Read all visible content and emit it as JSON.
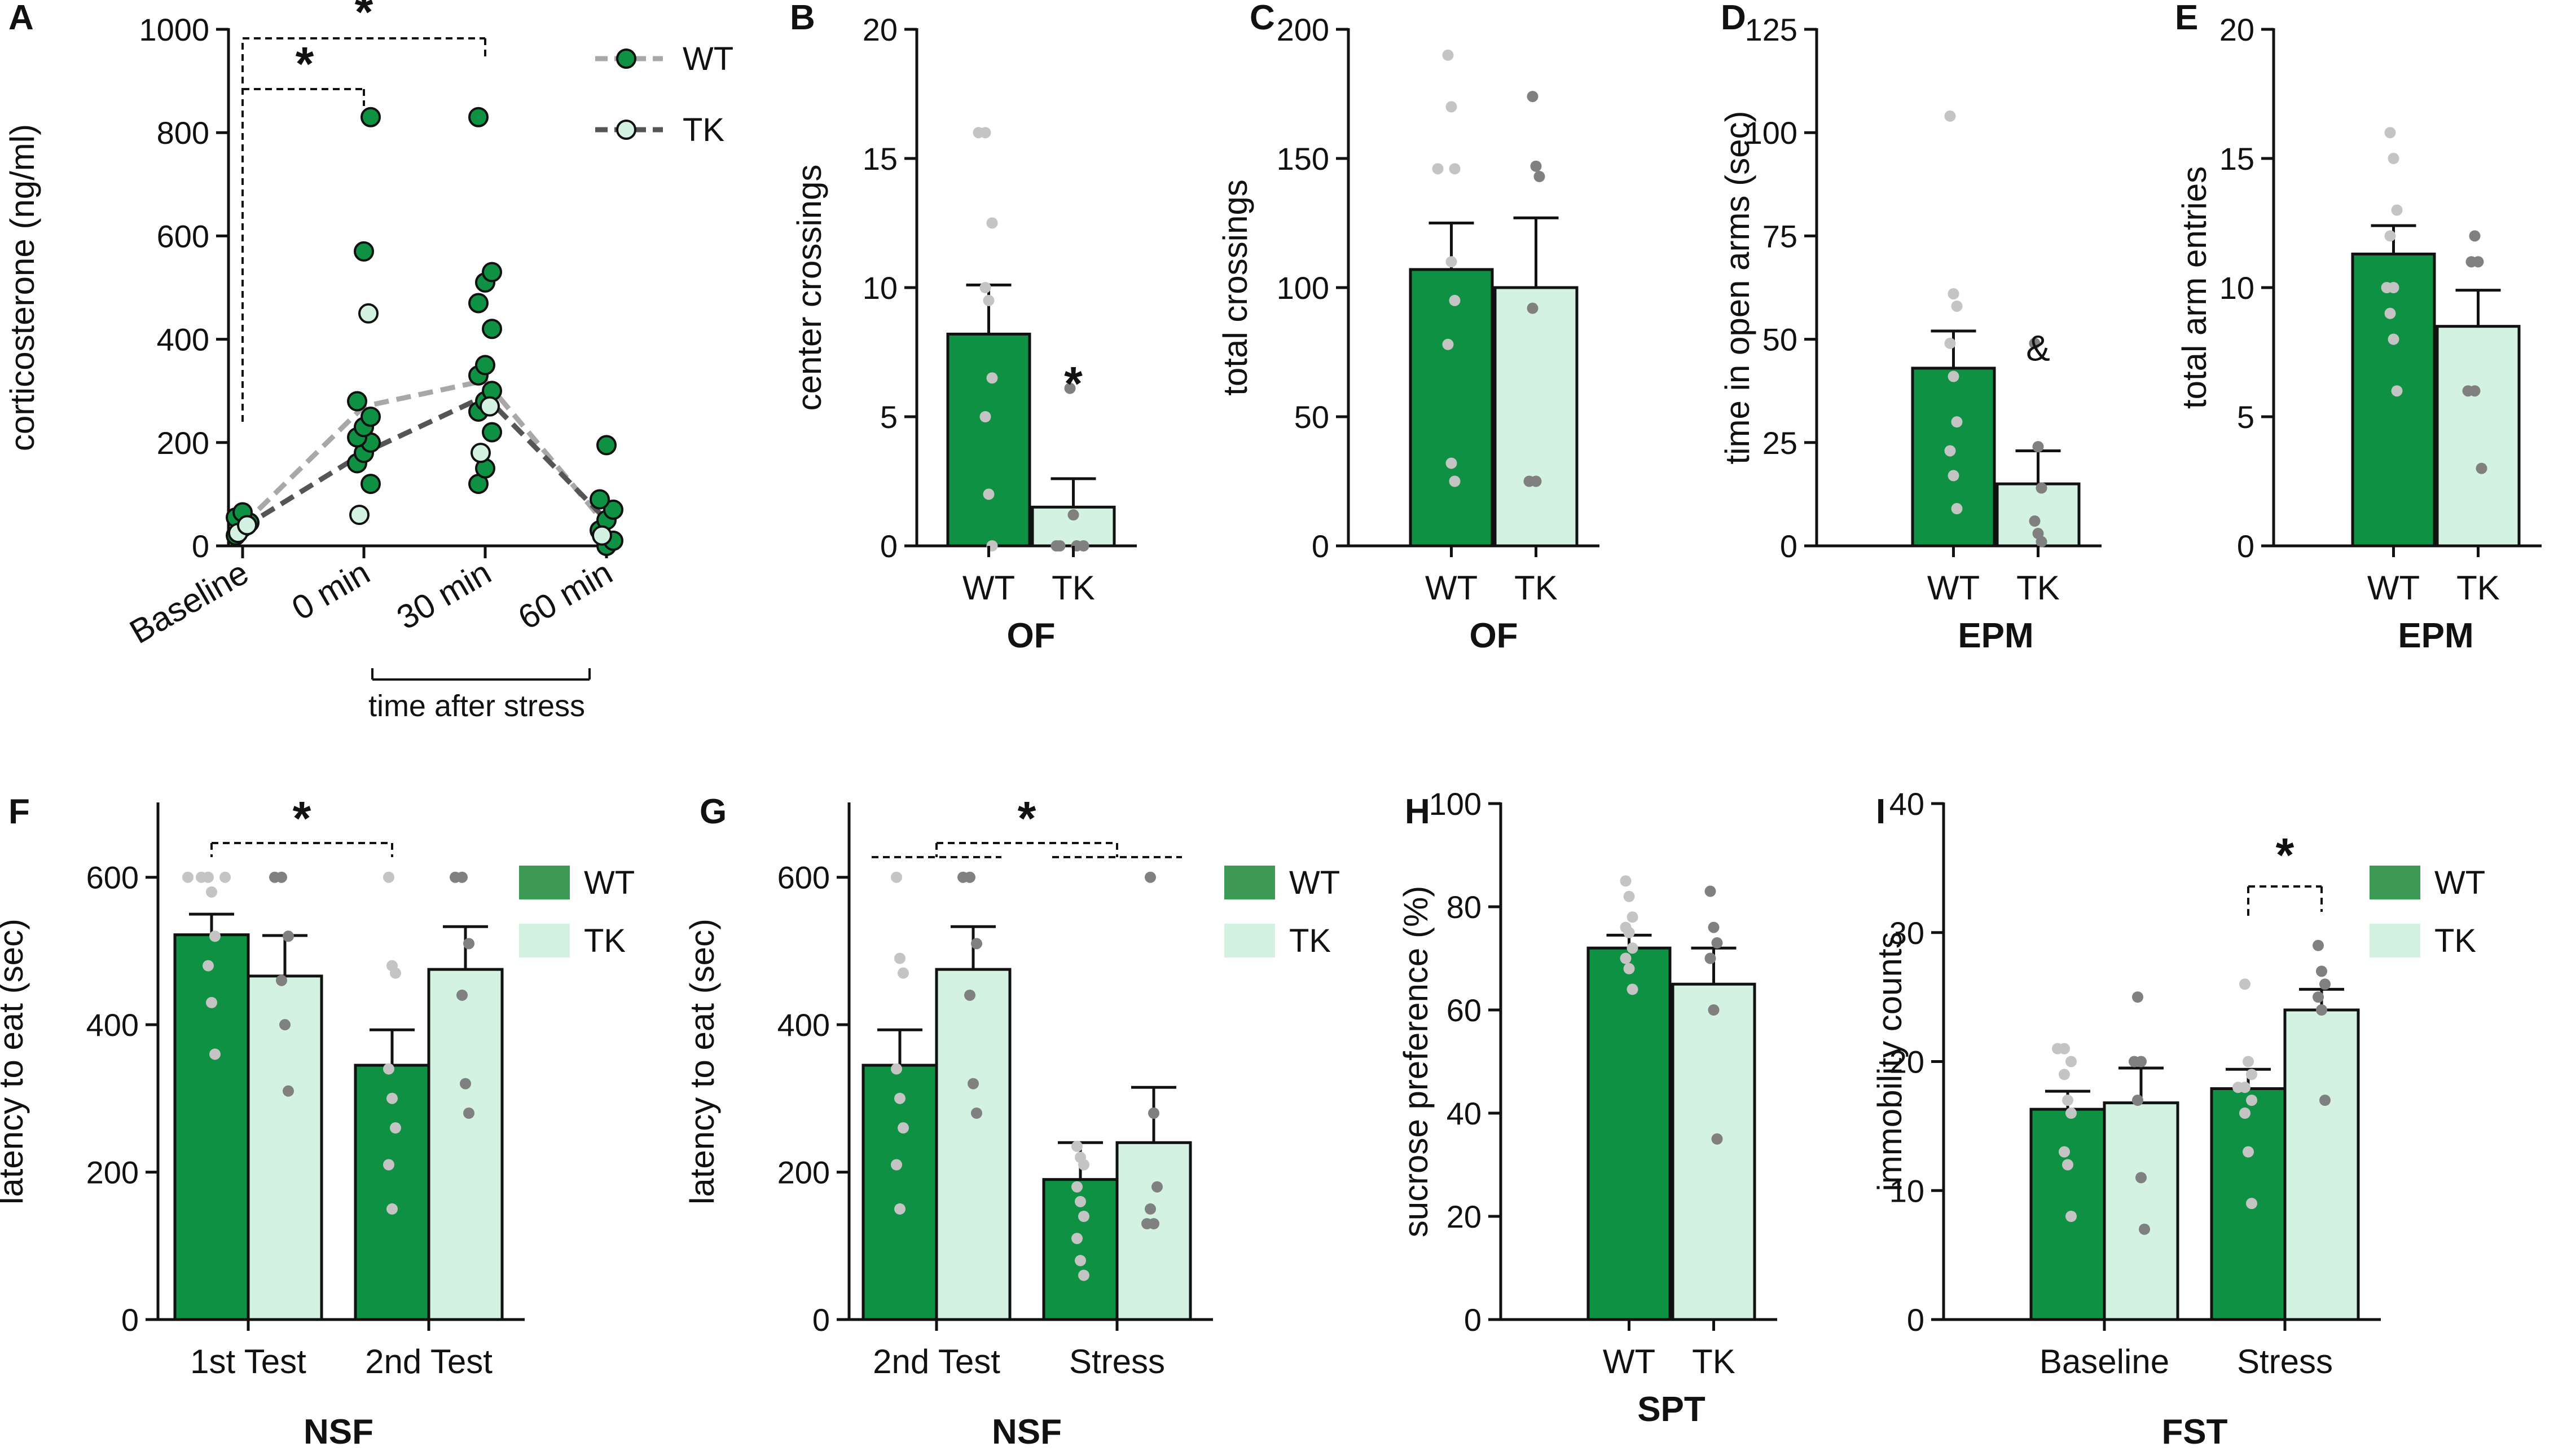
{
  "colors": {
    "wt": "#0e9142",
    "wt_legend": "#3c9a54",
    "tk": "#d4f2e1",
    "axis": "#111111",
    "dot_wt": "#c4c4c4",
    "dot_tk": "#808080",
    "line_wt": "#a8a8a8",
    "line_tk": "#555555"
  },
  "legend": {
    "wt": "WT",
    "tk": "TK"
  },
  "chart_data": [
    {
      "id": "A",
      "type": "line",
      "panel_label": "A",
      "ylabel": "corticosterone (ng/ml)",
      "ylim": [
        0,
        1000
      ],
      "yticks": [
        "0",
        "200",
        "400",
        "600",
        "800",
        "1000"
      ],
      "categories": [
        "Baseline",
        "0 min",
        "30 min",
        "60 min"
      ],
      "bracket_label": "time after stress",
      "series": [
        {
          "name": "WT",
          "values": [
            40,
            270,
            320,
            40
          ]
        },
        {
          "name": "TK",
          "values": [
            35,
            180,
            290,
            50
          ]
        }
      ],
      "points_wt": [
        [
          0,
          20
        ],
        [
          0,
          35
        ],
        [
          0,
          45
        ],
        [
          0,
          55
        ],
        [
          0,
          65
        ],
        [
          1,
          120
        ],
        [
          1,
          160
        ],
        [
          1,
          180
        ],
        [
          1,
          200
        ],
        [
          1,
          210
        ],
        [
          1,
          230
        ],
        [
          1,
          250
        ],
        [
          1,
          280
        ],
        [
          1,
          570
        ],
        [
          1,
          830
        ],
        [
          2,
          120
        ],
        [
          2,
          150
        ],
        [
          2,
          220
        ],
        [
          2,
          260
        ],
        [
          2,
          280
        ],
        [
          2,
          300
        ],
        [
          2,
          330
        ],
        [
          2,
          350
        ],
        [
          2,
          420
        ],
        [
          2,
          470
        ],
        [
          2,
          510
        ],
        [
          2,
          530
        ],
        [
          2,
          830
        ],
        [
          3,
          0
        ],
        [
          3,
          10
        ],
        [
          3,
          30
        ],
        [
          3,
          50
        ],
        [
          3,
          70
        ],
        [
          3,
          90
        ],
        [
          3,
          195
        ]
      ],
      "points_tk": [
        [
          0,
          25
        ],
        [
          0,
          40
        ],
        [
          1,
          60
        ],
        [
          1,
          450
        ],
        [
          2,
          180
        ],
        [
          2,
          270
        ],
        [
          3,
          20
        ]
      ],
      "stars": [
        "*",
        "*"
      ]
    },
    {
      "id": "B",
      "type": "bar",
      "panel_label": "B",
      "ylabel": "center crossings",
      "ylim": [
        0,
        20
      ],
      "yticks": [
        "0",
        "5",
        "10",
        "15",
        "20"
      ],
      "categories": [
        "WT",
        "TK"
      ],
      "group_label": "OF",
      "values": [
        8.2,
        1.5
      ],
      "errors": [
        1.9,
        1.1
      ],
      "points": [
        [
          16,
          16,
          12.5,
          10,
          9.5,
          6.5,
          5,
          2,
          0
        ],
        [
          6.1,
          1.2,
          0,
          0,
          0,
          0
        ]
      ],
      "annotation": "*"
    },
    {
      "id": "C",
      "type": "bar",
      "panel_label": "C",
      "ylabel": "total crossings",
      "ylim": [
        0,
        200
      ],
      "yticks": [
        "0",
        "50",
        "100",
        "150",
        "200"
      ],
      "categories": [
        "WT",
        "TK"
      ],
      "group_label": "OF",
      "values": [
        107,
        100
      ],
      "errors": [
        18,
        27
      ],
      "points": [
        [
          190,
          170,
          146,
          146,
          110,
          95,
          78,
          32,
          25
        ],
        [
          174,
          147,
          143,
          92,
          25,
          25
        ]
      ],
      "annotation": ""
    },
    {
      "id": "D",
      "type": "bar",
      "panel_label": "D",
      "ylabel": "time in open arms (sec)",
      "ylim": [
        0,
        125
      ],
      "yticks": [
        "0",
        "25",
        "50",
        "75",
        "100",
        "125"
      ],
      "categories": [
        "WT",
        "TK"
      ],
      "group_label": "EPM",
      "values": [
        43,
        15
      ],
      "errors": [
        9,
        8
      ],
      "points": [
        [
          104,
          61,
          58,
          49,
          41,
          30,
          23,
          17,
          9
        ],
        [
          49,
          24,
          14,
          6,
          3,
          1
        ]
      ],
      "annotation": "&"
    },
    {
      "id": "E",
      "type": "bar",
      "panel_label": "E",
      "ylabel": "total arm entries",
      "ylim": [
        0,
        20
      ],
      "yticks": [
        "0",
        "5",
        "10",
        "15",
        "20"
      ],
      "categories": [
        "WT",
        "TK"
      ],
      "group_label": "EPM",
      "values": [
        11.3,
        8.5
      ],
      "errors": [
        1.1,
        1.4
      ],
      "points": [
        [
          16,
          15,
          13,
          12,
          10,
          10,
          9,
          8,
          6
        ],
        [
          12,
          11,
          11,
          6,
          6,
          3
        ]
      ],
      "annotation": ""
    },
    {
      "id": "F",
      "type": "bar",
      "panel_label": "F",
      "ylabel": "latency to eat (sec)",
      "ylim": [
        0,
        700
      ],
      "yticks": [
        "0",
        "200",
        "400",
        "600"
      ],
      "categories": [
        "1st Test",
        "2nd Test"
      ],
      "group_label": "NSF",
      "series": [
        {
          "name": "WT",
          "values": [
            522,
            345
          ],
          "errors": [
            28,
            48
          ]
        },
        {
          "name": "TK",
          "values": [
            466,
            475
          ],
          "errors": [
            55,
            58
          ]
        }
      ],
      "points": [
        [
          [
            600,
            600,
            600,
            600,
            580,
            520,
            480,
            430,
            360
          ],
          [
            600,
            480,
            470,
            340,
            300,
            260,
            210,
            150
          ]
        ],
        [
          [
            600,
            600,
            520,
            460,
            400,
            310
          ],
          [
            600,
            600,
            510,
            440,
            320,
            280
          ]
        ]
      ],
      "stars": [
        "*"
      ]
    },
    {
      "id": "G",
      "type": "bar",
      "panel_label": "G",
      "ylabel": "latency to eat (sec)",
      "ylim": [
        0,
        700
      ],
      "yticks": [
        "0",
        "200",
        "400",
        "600"
      ],
      "categories": [
        "2nd Test",
        "Stress"
      ],
      "group_label": "NSF",
      "series": [
        {
          "name": "WT",
          "values": [
            345,
            190
          ],
          "errors": [
            48,
            50
          ]
        },
        {
          "name": "TK",
          "values": [
            475,
            240
          ],
          "errors": [
            58,
            75
          ]
        }
      ],
      "points": [
        [
          [
            600,
            490,
            470,
            340,
            300,
            260,
            210,
            150
          ],
          [
            235,
            220,
            210,
            180,
            160,
            140,
            110,
            80,
            60
          ]
        ],
        [
          [
            600,
            600,
            510,
            440,
            320,
            280
          ],
          [
            600,
            280,
            180,
            150,
            130,
            130
          ]
        ]
      ],
      "stars": [
        "*"
      ]
    },
    {
      "id": "H",
      "type": "bar",
      "panel_label": "H",
      "ylabel": "sucrose preference (%)",
      "ylim": [
        0,
        100
      ],
      "yticks": [
        "0",
        "20",
        "40",
        "60",
        "80",
        "100"
      ],
      "categories": [
        "WT",
        "TK"
      ],
      "group_label": "SPT",
      "values": [
        72,
        65
      ],
      "errors": [
        2.5,
        7
      ],
      "points": [
        [
          85,
          82,
          78,
          76,
          75,
          72,
          70,
          68,
          64
        ],
        [
          83,
          76,
          73,
          70,
          60,
          35
        ]
      ],
      "annotation": ""
    },
    {
      "id": "I",
      "type": "bar",
      "panel_label": "I",
      "ylabel": "immobility counts",
      "ylim": [
        0,
        40
      ],
      "yticks": [
        "0",
        "10",
        "20",
        "30",
        "40"
      ],
      "categories": [
        "Baseline",
        "Stress"
      ],
      "group_label": "FST",
      "series": [
        {
          "name": "WT",
          "values": [
            16.3,
            17.9
          ],
          "errors": [
            1.4,
            1.5
          ]
        },
        {
          "name": "TK",
          "values": [
            16.8,
            24.0
          ],
          "errors": [
            2.7,
            1.6
          ]
        }
      ],
      "points": [
        [
          [
            21,
            21,
            20,
            19,
            17,
            16,
            13,
            12,
            8
          ],
          [
            26,
            20,
            19,
            18,
            18,
            17,
            16,
            13,
            9
          ]
        ],
        [
          [
            25,
            20,
            20,
            17,
            11,
            7
          ],
          [
            29,
            27,
            26,
            25,
            24,
            17
          ]
        ]
      ],
      "stars": [
        "*"
      ]
    }
  ]
}
